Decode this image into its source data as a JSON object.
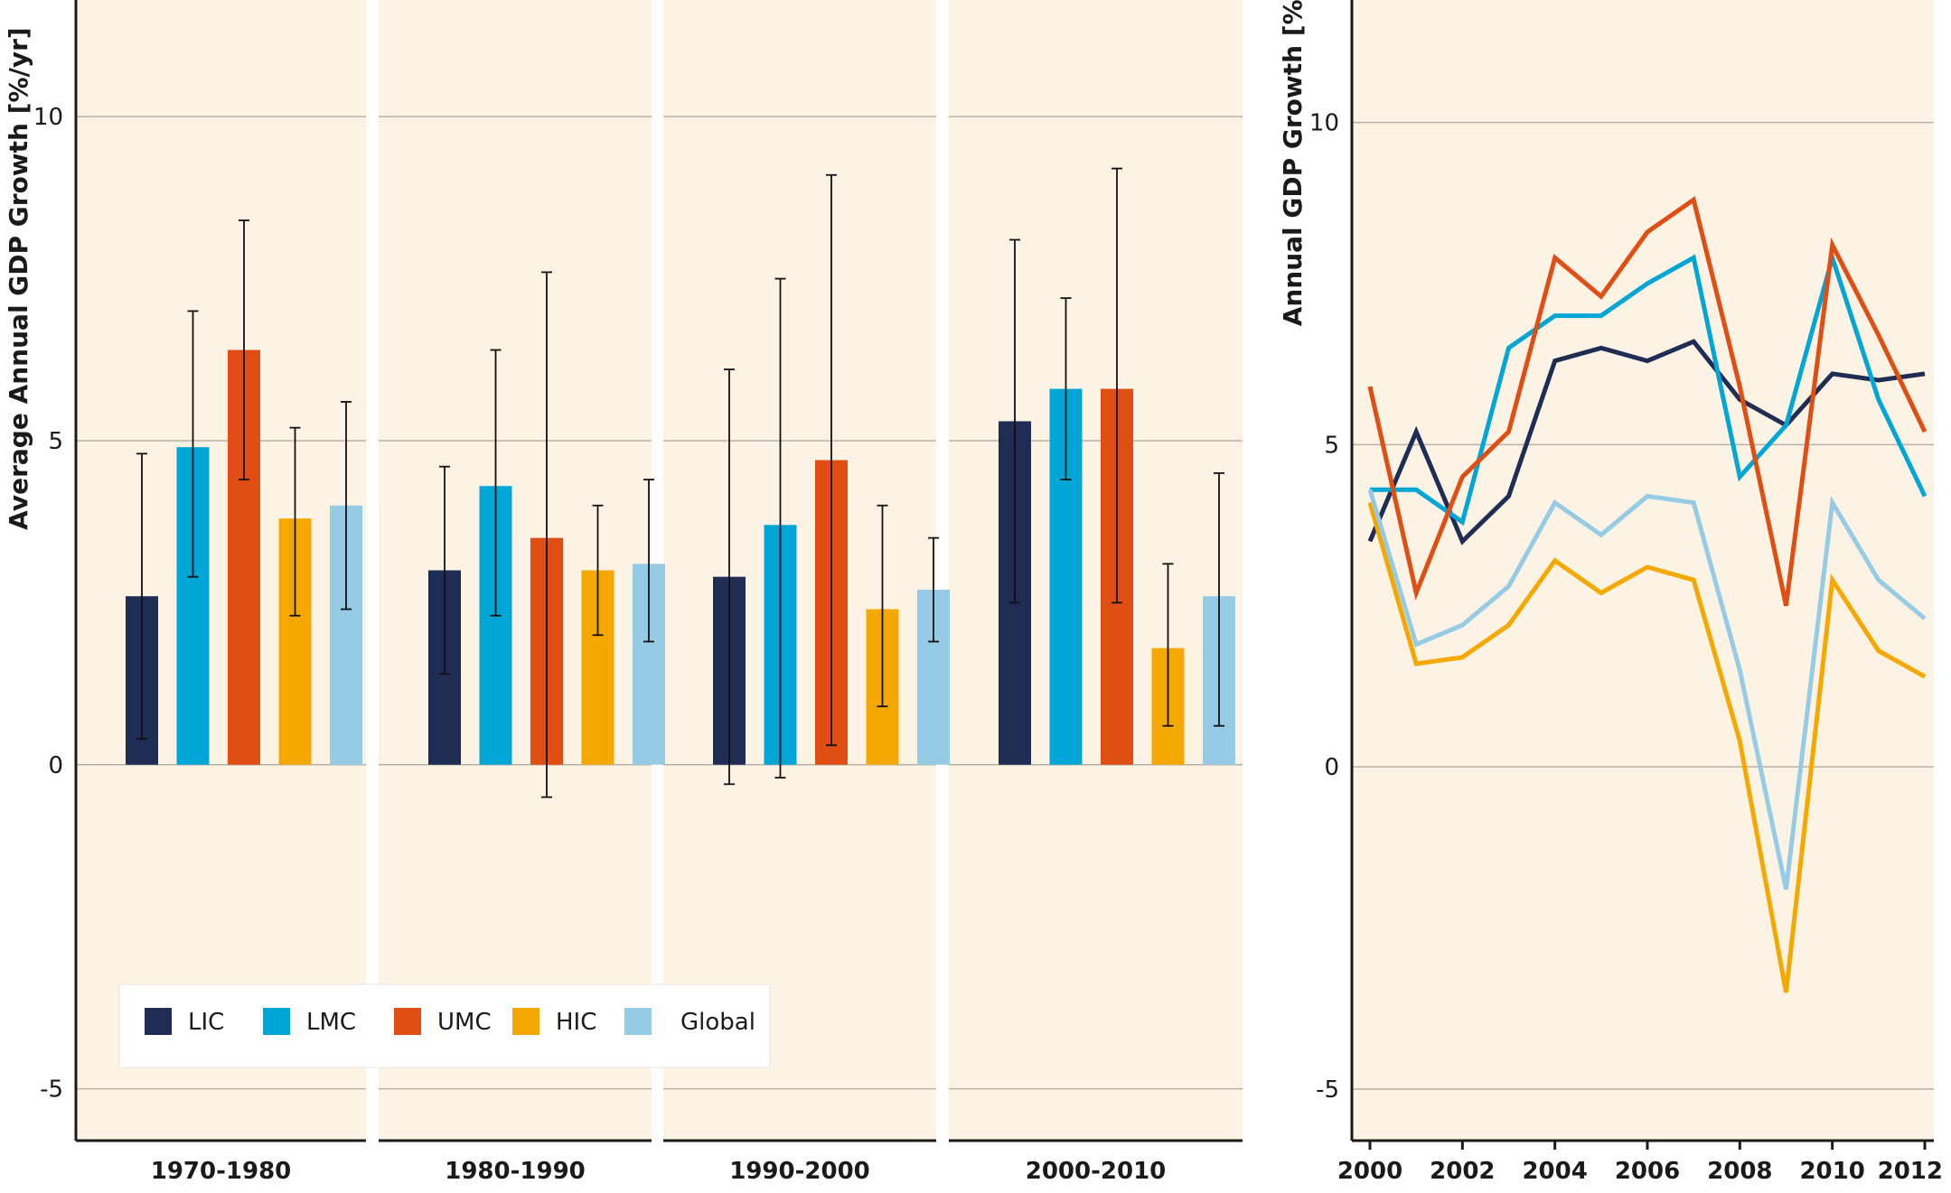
{
  "colors": {
    "panel_bg": "#fdf3e4",
    "grid": "#b8b2aa",
    "axis": "#1a1a1a",
    "LIC": "#1f2d55",
    "LMC": "#00a6d6",
    "UMC": "#e04e14",
    "HIC": "#f5a800",
    "Global": "#96cbe6"
  },
  "legend": [
    "LIC",
    "LMC",
    "UMC",
    "HIC",
    "Global"
  ],
  "chart_data": [
    {
      "type": "bar",
      "ylabel": "Average Annual GDP Growth [%/yr]",
      "ylim": [
        -5.8,
        11.8
      ],
      "yticks": [
        "10",
        "5",
        "0",
        "-5"
      ],
      "ytick_values": [
        10,
        5,
        0,
        -5
      ],
      "grid": true,
      "legend_position": "bottom-left",
      "groups": [
        "1970-1980",
        "1980-1990",
        "1990-2000",
        "2000-2010"
      ],
      "series": [
        {
          "name": "LIC",
          "values": [
            2.6,
            3.0,
            2.9,
            5.3
          ],
          "err_low": [
            0.4,
            1.4,
            -0.3,
            2.5
          ],
          "err_high": [
            4.8,
            4.6,
            6.1,
            8.1
          ]
        },
        {
          "name": "LMC",
          "values": [
            4.9,
            4.3,
            3.7,
            5.8
          ],
          "err_low": [
            2.9,
            2.3,
            -0.2,
            4.4
          ],
          "err_high": [
            7.0,
            6.4,
            7.5,
            7.2
          ]
        },
        {
          "name": "UMC",
          "values": [
            6.4,
            3.5,
            4.7,
            5.8
          ],
          "err_low": [
            4.4,
            -0.5,
            0.3,
            2.5
          ],
          "err_high": [
            8.4,
            7.6,
            9.1,
            9.2
          ]
        },
        {
          "name": "HIC",
          "values": [
            3.8,
            3.0,
            2.4,
            1.8
          ],
          "err_low": [
            2.3,
            2.0,
            0.9,
            0.6
          ],
          "err_high": [
            5.2,
            4.0,
            4.0,
            3.1
          ]
        },
        {
          "name": "Global",
          "values": [
            4.0,
            3.1,
            2.7,
            2.6
          ],
          "err_low": [
            2.4,
            1.9,
            1.9,
            0.6
          ],
          "err_high": [
            5.6,
            4.4,
            3.5,
            4.5
          ]
        }
      ]
    },
    {
      "type": "line",
      "ylabel": "Annual GDP Growth [%/yr]",
      "ylim": [
        -5.8,
        11.9
      ],
      "yticks": [
        "10",
        "5",
        "0",
        "-5"
      ],
      "ytick_values": [
        10,
        5,
        0,
        -5
      ],
      "xticks": [
        "2000",
        "2002",
        "2004",
        "2006",
        "2008",
        "2010",
        "2012"
      ],
      "xtick_values": [
        2000,
        2002,
        2004,
        2006,
        2008,
        2010,
        2012
      ],
      "xlim": [
        2000,
        2012
      ],
      "grid": true,
      "x": [
        2000,
        2001,
        2002,
        2003,
        2004,
        2005,
        2006,
        2007,
        2008,
        2009,
        2010,
        2011,
        2012
      ],
      "series": [
        {
          "name": "LIC",
          "values": [
            3.5,
            5.2,
            3.5,
            4.2,
            6.3,
            6.5,
            6.3,
            6.6,
            5.7,
            5.3,
            6.1,
            6.0,
            6.1
          ]
        },
        {
          "name": "LMC",
          "values": [
            4.3,
            4.3,
            3.8,
            6.5,
            7.0,
            7.0,
            7.5,
            7.9,
            4.5,
            5.3,
            7.9,
            5.7,
            4.2
          ]
        },
        {
          "name": "UMC",
          "values": [
            5.9,
            2.7,
            4.5,
            5.2,
            7.9,
            7.3,
            8.3,
            8.8,
            5.9,
            2.5,
            8.1,
            6.7,
            5.2
          ]
        },
        {
          "name": "HIC",
          "values": [
            4.1,
            1.6,
            1.7,
            2.2,
            3.2,
            2.7,
            3.1,
            2.9,
            0.4,
            -3.5,
            2.9,
            1.8,
            1.4
          ]
        },
        {
          "name": "Global",
          "values": [
            4.3,
            1.9,
            2.2,
            2.8,
            4.1,
            3.6,
            4.2,
            4.1,
            1.5,
            -1.9,
            4.1,
            2.9,
            2.3
          ]
        }
      ]
    }
  ]
}
